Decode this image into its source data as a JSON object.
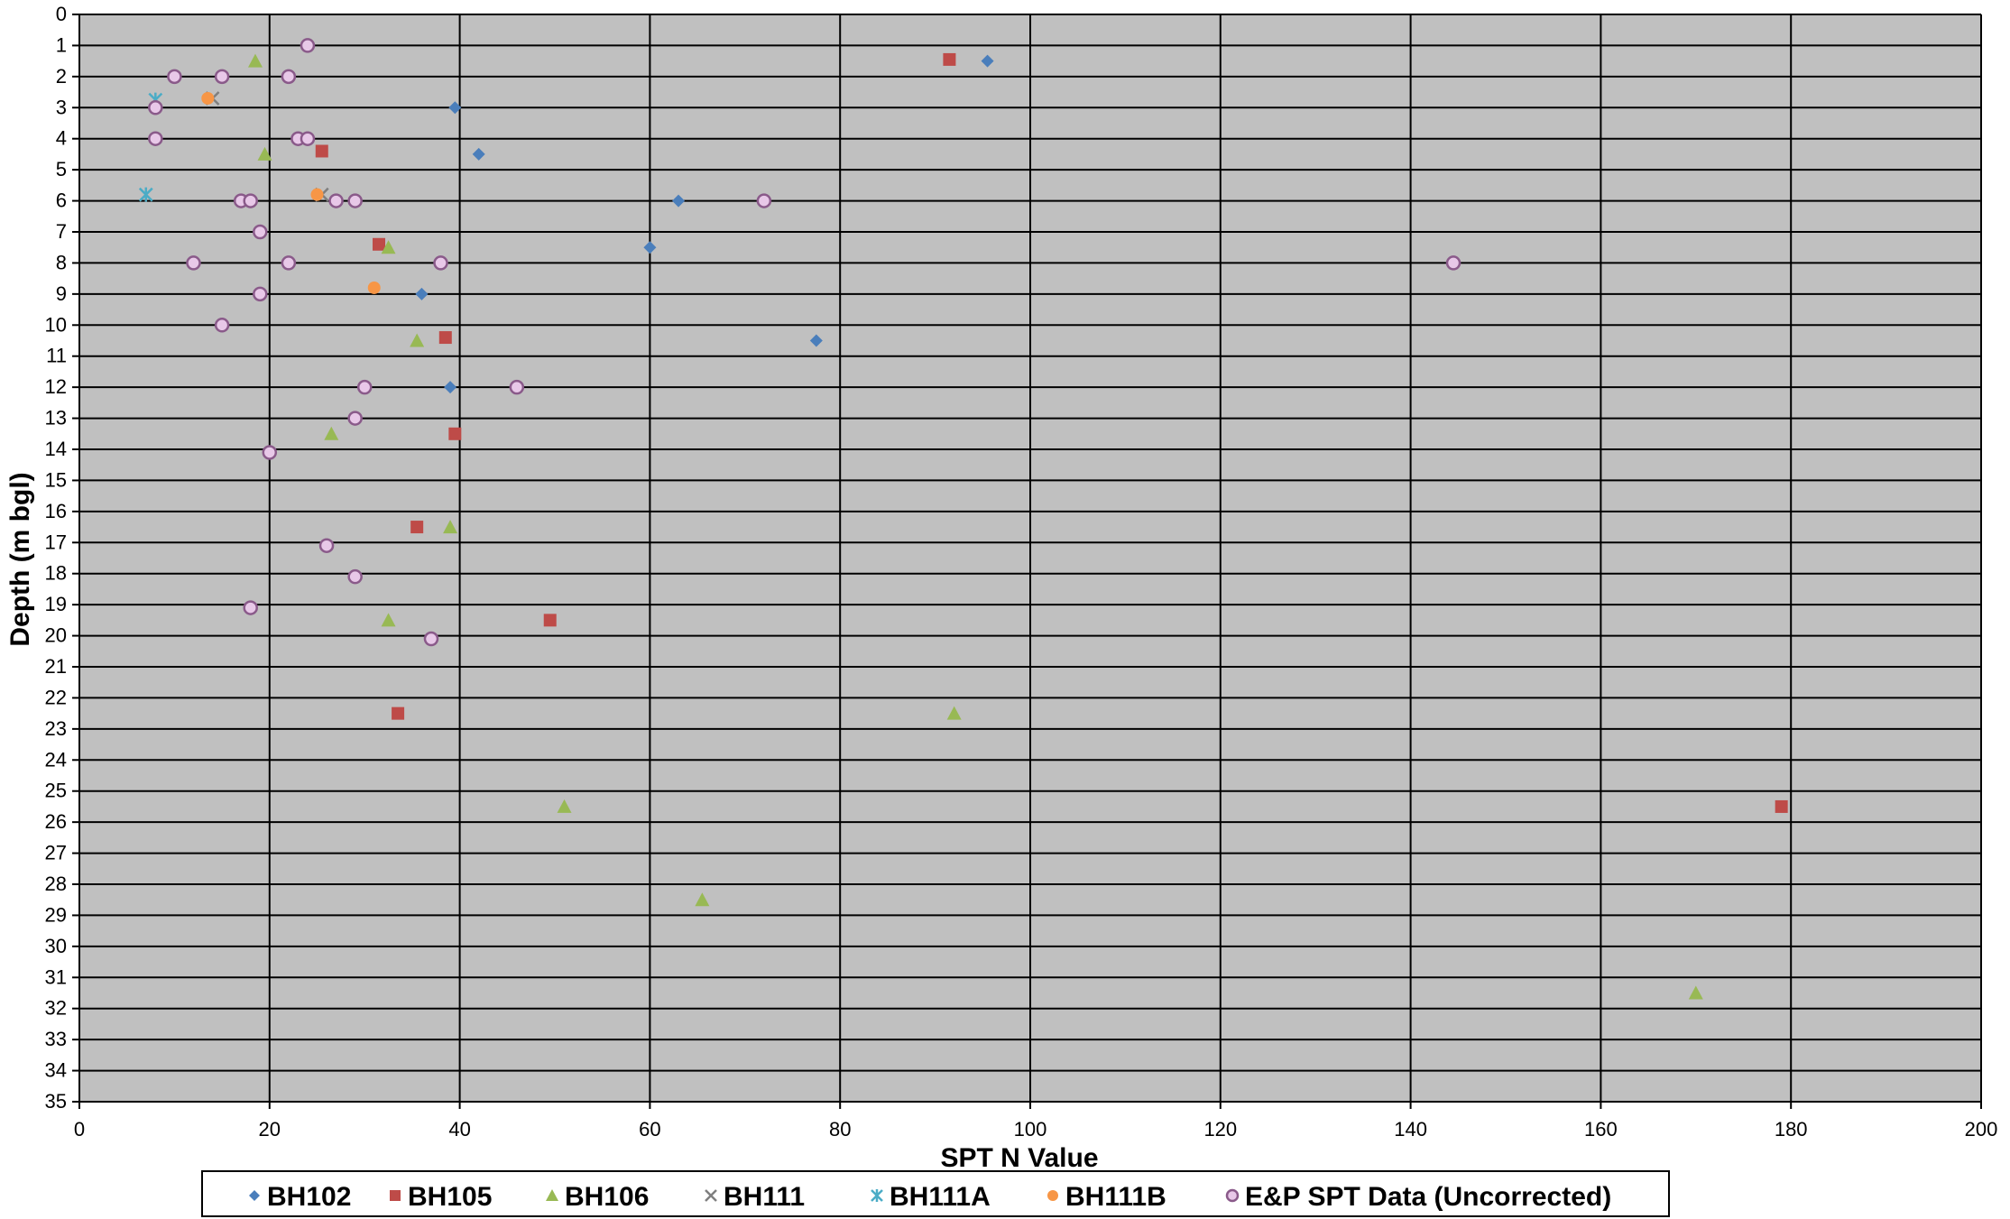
{
  "chart_data": {
    "type": "scatter",
    "title": "",
    "xlabel": "SPT N Value",
    "ylabel": "Depth (m bgl)",
    "xlim": [
      0,
      200
    ],
    "ylim": [
      0,
      35
    ],
    "y_inverted": true,
    "x_ticks": [
      0,
      20,
      40,
      60,
      80,
      100,
      120,
      140,
      160,
      180,
      200
    ],
    "y_ticks": [
      0,
      1,
      2,
      3,
      4,
      5,
      6,
      7,
      8,
      9,
      10,
      11,
      12,
      13,
      14,
      15,
      16,
      17,
      18,
      19,
      20,
      21,
      22,
      23,
      24,
      25,
      26,
      27,
      28,
      29,
      30,
      31,
      32,
      33,
      34,
      35
    ],
    "grid": "horizontal and vertical",
    "legend_position": "bottom",
    "colors": {
      "plot_background": "#c0c0c0",
      "gridline": "#000000"
    },
    "series": [
      {
        "name": "BH102",
        "marker": "diamond",
        "color": "#4a7ebb",
        "points": [
          [
            95.5,
            1.5
          ],
          [
            39.5,
            3.0
          ],
          [
            42,
            4.5
          ],
          [
            63,
            6.0
          ],
          [
            60,
            7.5
          ],
          [
            36,
            9.0
          ],
          [
            77.5,
            10.5
          ],
          [
            39,
            12.0
          ]
        ]
      },
      {
        "name": "BH105",
        "marker": "square",
        "color": "#be4b48",
        "points": [
          [
            91.5,
            1.45
          ],
          [
            25.5,
            4.4
          ],
          [
            31.5,
            7.4
          ],
          [
            38.5,
            10.4
          ],
          [
            39.5,
            13.5
          ],
          [
            35.5,
            16.5
          ],
          [
            49.5,
            19.5
          ],
          [
            33.5,
            22.5
          ],
          [
            179,
            25.5
          ]
        ]
      },
      {
        "name": "BH106",
        "marker": "triangle",
        "color": "#98b954",
        "points": [
          [
            18.5,
            1.5
          ],
          [
            19.5,
            4.5
          ],
          [
            32.5,
            7.5
          ],
          [
            35.5,
            10.5
          ],
          [
            26.5,
            13.5
          ],
          [
            39,
            16.5
          ],
          [
            32.5,
            19.5
          ],
          [
            92,
            22.5
          ],
          [
            51,
            25.5
          ],
          [
            65.5,
            28.5
          ],
          [
            170,
            31.5
          ]
        ]
      },
      {
        "name": "BH111",
        "marker": "x",
        "color": "#7f7f7f",
        "points": [
          [
            14,
            2.7
          ],
          [
            25.5,
            5.8
          ]
        ]
      },
      {
        "name": "BH111A",
        "marker": "asterisk",
        "color": "#4bacc6",
        "points": [
          [
            8,
            2.75
          ],
          [
            7,
            5.8
          ]
        ]
      },
      {
        "name": "BH111B",
        "marker": "circle",
        "color": "#f79646",
        "points": [
          [
            13.5,
            2.7
          ],
          [
            25,
            5.8
          ],
          [
            31,
            8.8
          ]
        ]
      },
      {
        "name": "E&P SPT Data (Uncorrected)",
        "marker": "open-circle",
        "color": "#8a5a8a",
        "points": [
          [
            24,
            1.0
          ],
          [
            10,
            2.0
          ],
          [
            15,
            2.0
          ],
          [
            22,
            2.0
          ],
          [
            8,
            3.0
          ],
          [
            8,
            4.0
          ],
          [
            23,
            4.0
          ],
          [
            24,
            4.0
          ],
          [
            17,
            6.0
          ],
          [
            18,
            6.0
          ],
          [
            27,
            6.0
          ],
          [
            29,
            6.0
          ],
          [
            72,
            6.0
          ],
          [
            19,
            7.0
          ],
          [
            12,
            8.0
          ],
          [
            22,
            8.0
          ],
          [
            38,
            8.0
          ],
          [
            144.5,
            8.0
          ],
          [
            19,
            9.0
          ],
          [
            15,
            10.0
          ],
          [
            30,
            12.0
          ],
          [
            46,
            12.0
          ],
          [
            29,
            13.0
          ],
          [
            20,
            14.1
          ],
          [
            26,
            17.1
          ],
          [
            29,
            18.1
          ],
          [
            18,
            19.1
          ],
          [
            37,
            20.1
          ]
        ]
      }
    ]
  }
}
